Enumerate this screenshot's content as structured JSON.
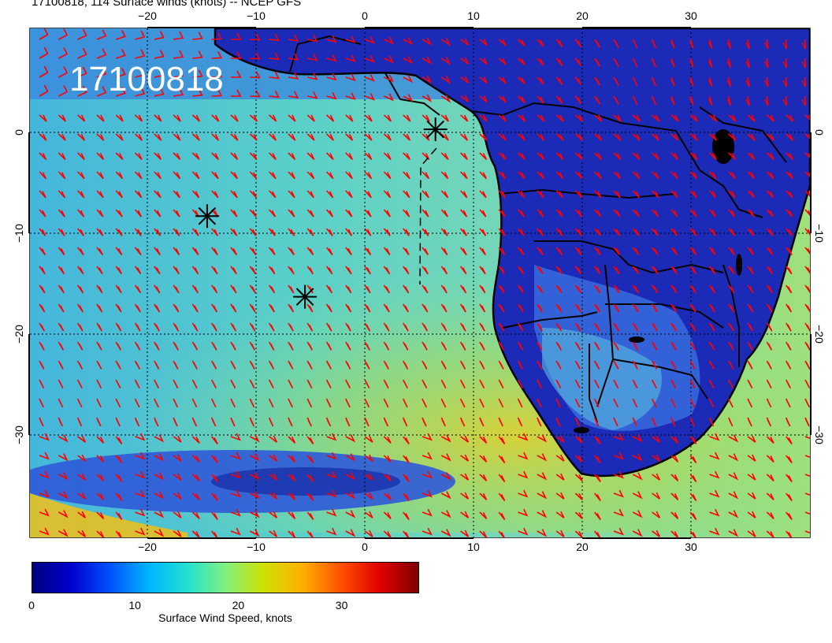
{
  "title": "17100818, 114 Surface winds (knots) -- NCEP GFS",
  "stamp": "17100818",
  "axes": {
    "x_ticks_top": [
      "−20",
      "−10",
      "0",
      "10",
      "20",
      "30"
    ],
    "x_ticks_bottom": [
      "−20",
      "−10",
      "0",
      "10",
      "20",
      "30"
    ],
    "y_ticks_left": [
      "0",
      "−10",
      "−20",
      "−30"
    ],
    "y_ticks_right": [
      "0",
      "−10",
      "−20",
      "−30"
    ]
  },
  "colorbar": {
    "label": "Surface Wind Speed, knots",
    "ticks": [
      "0",
      "10",
      "20",
      "30"
    ],
    "colors": [
      "#00007f",
      "#0000cc",
      "#0050ff",
      "#00b4ff",
      "#20e0d0",
      "#80f080",
      "#d0e000",
      "#ffb000",
      "#ff5000",
      "#e00000",
      "#800000"
    ]
  },
  "markers": [
    {
      "name": "storm-marker",
      "lon": 6.5,
      "lat": 0.3
    },
    {
      "name": "storm-marker",
      "lon": -14.5,
      "lat": -8.3
    },
    {
      "name": "storm-marker",
      "lon": -5.5,
      "lat": -16.3
    }
  ],
  "barb_color": "#ff0000",
  "map_colors": {
    "ocean_weak": "#2a72d8",
    "ocean_mid": "#4ec8d0",
    "ocean_strong": "#a6dc3c",
    "land": "#1a22b0",
    "coast": "#000000"
  }
}
